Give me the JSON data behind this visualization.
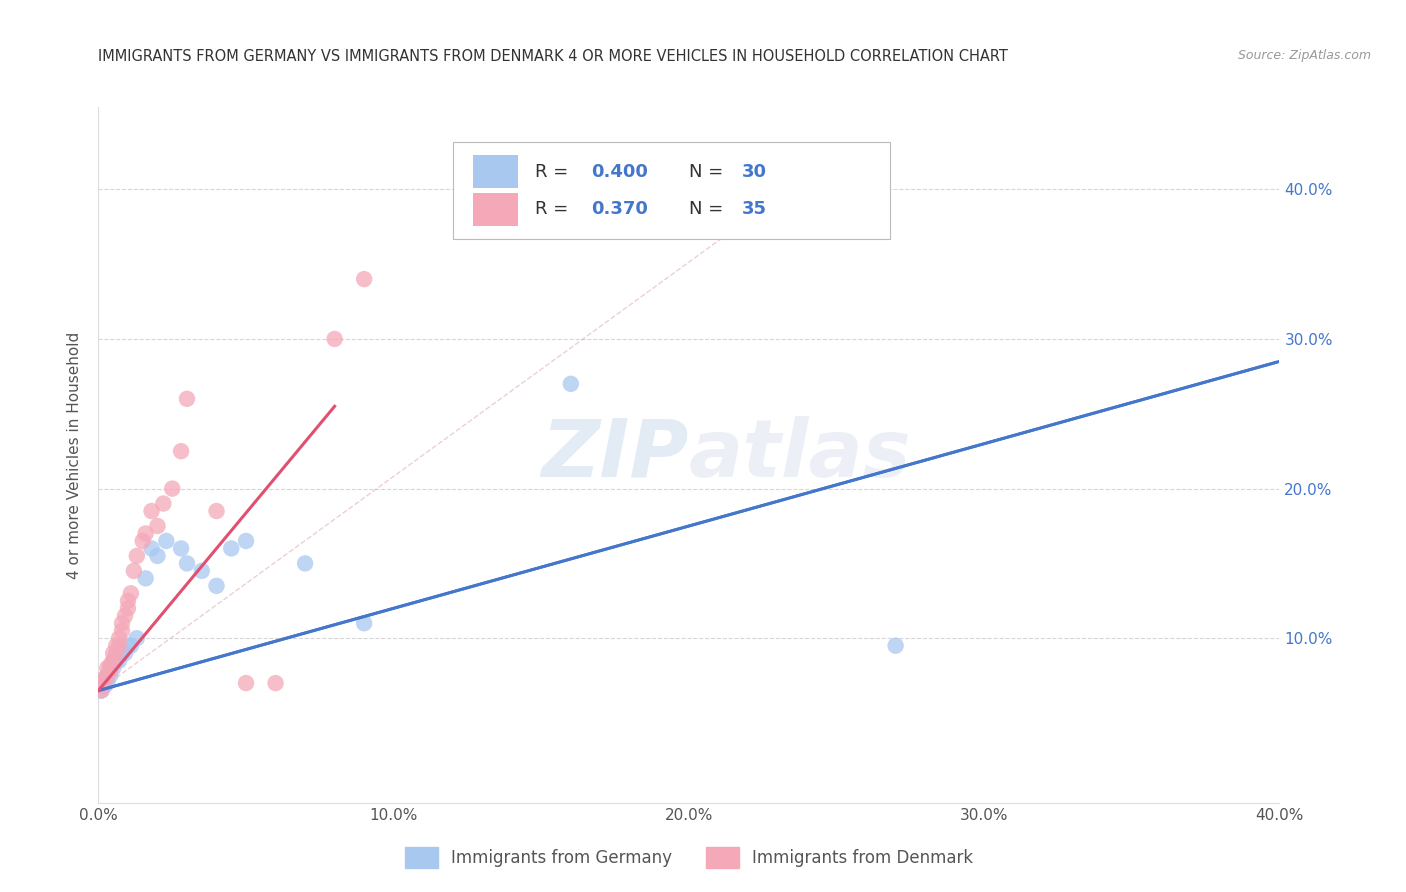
{
  "title": "IMMIGRANTS FROM GERMANY VS IMMIGRANTS FROM DENMARK 4 OR MORE VEHICLES IN HOUSEHOLD CORRELATION CHART",
  "source": "Source: ZipAtlas.com",
  "ylabel": "4 or more Vehicles in Household",
  "xlim": [
    0.0,
    0.4
  ],
  "ylim": [
    -0.01,
    0.455
  ],
  "xtick_labels": [
    "0.0%",
    "",
    "",
    "",
    "10.0%",
    "",
    "",
    "",
    "",
    "20.0%",
    "",
    "",
    "",
    "",
    "30.0%",
    "",
    "",
    "",
    "",
    "40.0%"
  ],
  "xtick_vals": [
    0.0,
    0.02,
    0.04,
    0.06,
    0.1,
    0.12,
    0.14,
    0.16,
    0.18,
    0.2,
    0.22,
    0.24,
    0.26,
    0.28,
    0.3,
    0.32,
    0.34,
    0.36,
    0.38,
    0.4
  ],
  "ytick_labels": [
    "10.0%",
    "20.0%",
    "30.0%",
    "40.0%"
  ],
  "ytick_vals": [
    0.1,
    0.2,
    0.3,
    0.4
  ],
  "germany_color": "#a8c8f0",
  "denmark_color": "#f4a8b8",
  "germany_line_color": "#4477cc",
  "denmark_line_color": "#e05070",
  "diag_line_color": "#e0b0b8",
  "r_n_color": "#4477cc",
  "germany_R": 0.4,
  "germany_N": 30,
  "denmark_R": 0.37,
  "denmark_N": 35,
  "watermark_zip": "ZIP",
  "watermark_atlas": "atlas",
  "legend_label_germany": "Immigrants from Germany",
  "legend_label_denmark": "Immigrants from Denmark",
  "germany_x": [
    0.001,
    0.002,
    0.002,
    0.003,
    0.003,
    0.004,
    0.004,
    0.005,
    0.005,
    0.006,
    0.007,
    0.008,
    0.009,
    0.01,
    0.011,
    0.013,
    0.016,
    0.018,
    0.02,
    0.023,
    0.028,
    0.03,
    0.035,
    0.04,
    0.045,
    0.05,
    0.07,
    0.09,
    0.16,
    0.27
  ],
  "germany_y": [
    0.065,
    0.068,
    0.072,
    0.07,
    0.075,
    0.075,
    0.08,
    0.08,
    0.085,
    0.085,
    0.085,
    0.09,
    0.09,
    0.095,
    0.095,
    0.1,
    0.14,
    0.16,
    0.155,
    0.165,
    0.16,
    0.15,
    0.145,
    0.135,
    0.16,
    0.165,
    0.15,
    0.11,
    0.27,
    0.095
  ],
  "denmark_x": [
    0.001,
    0.001,
    0.002,
    0.002,
    0.003,
    0.003,
    0.004,
    0.004,
    0.005,
    0.005,
    0.006,
    0.006,
    0.007,
    0.007,
    0.008,
    0.008,
    0.009,
    0.01,
    0.01,
    0.011,
    0.012,
    0.013,
    0.015,
    0.016,
    0.018,
    0.02,
    0.022,
    0.025,
    0.028,
    0.03,
    0.04,
    0.05,
    0.06,
    0.08,
    0.09
  ],
  "denmark_y": [
    0.065,
    0.068,
    0.07,
    0.073,
    0.075,
    0.08,
    0.078,
    0.082,
    0.085,
    0.09,
    0.09,
    0.095,
    0.095,
    0.1,
    0.105,
    0.11,
    0.115,
    0.12,
    0.125,
    0.13,
    0.145,
    0.155,
    0.165,
    0.17,
    0.185,
    0.175,
    0.19,
    0.2,
    0.225,
    0.26,
    0.185,
    0.07,
    0.07,
    0.3,
    0.34
  ],
  "germany_line_x0": 0.0,
  "germany_line_y0": 0.065,
  "germany_line_x1": 0.4,
  "germany_line_y1": 0.285,
  "denmark_line_x0": 0.0,
  "denmark_line_y0": 0.065,
  "denmark_line_x1": 0.08,
  "denmark_line_y1": 0.255
}
